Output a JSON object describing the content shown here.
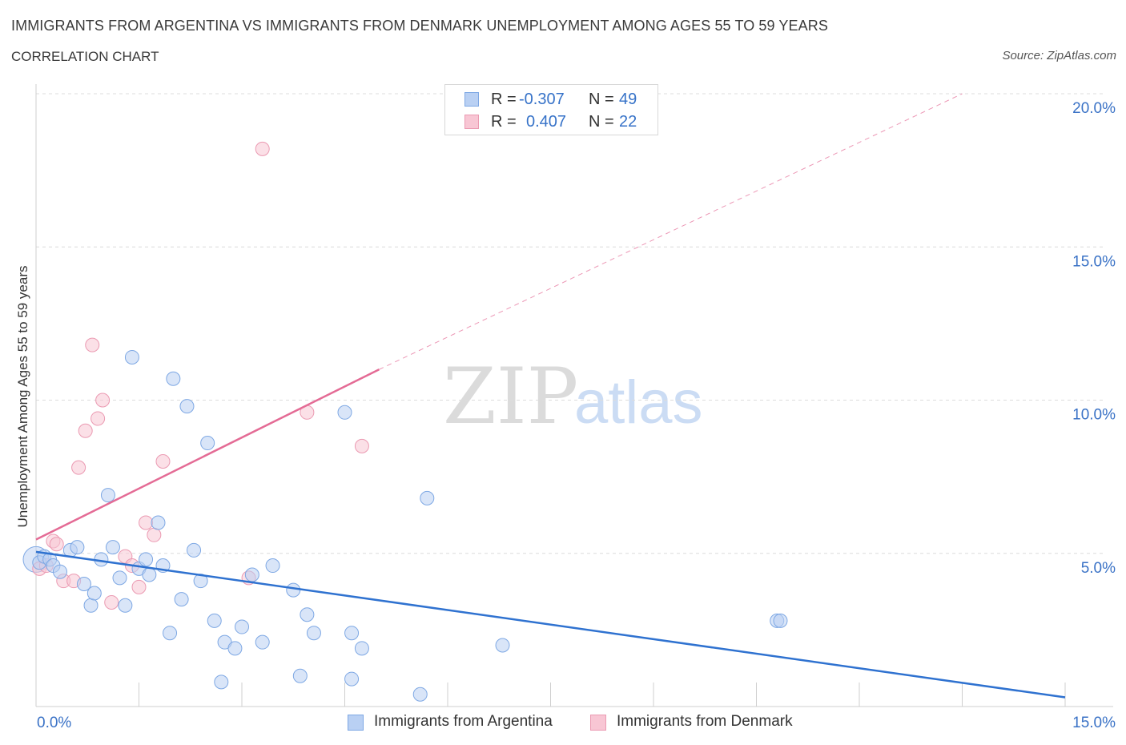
{
  "title": "IMMIGRANTS FROM ARGENTINA VS IMMIGRANTS FROM DENMARK UNEMPLOYMENT AMONG AGES 55 TO 59 YEARS",
  "subtitle": "CORRELATION CHART",
  "source": "Source: ZipAtlas.com",
  "watermark": {
    "zip": "ZIP",
    "atlas": "atlas"
  },
  "legend": {
    "rows": [
      {
        "r_label": "R =",
        "r_value": "-0.307",
        "n_label": "N =",
        "n_value": "49"
      },
      {
        "r_label": "R =",
        "r_value": "0.407",
        "n_label": "N =",
        "n_value": "22"
      }
    ]
  },
  "bottom_legend": [
    "Immigrants from Argentina",
    "Immigrants from Denmark"
  ],
  "colors": {
    "argentina_fill": "#b9d0f3",
    "argentina_stroke": "#7ea8e4",
    "argentina_line": "#2f72d0",
    "denmark_fill": "#f8c6d4",
    "denmark_stroke": "#eb9ab2",
    "denmark_line": "#e46b95",
    "tick_label": "#3a72c6",
    "grid": "#dcdcdc"
  },
  "chart_data": {
    "type": "scatter",
    "title": "IMMIGRANTS FROM ARGENTINA VS IMMIGRANTS FROM DENMARK UNEMPLOYMENT AMONG AGES 55 TO 59 YEARS",
    "xlabel": "",
    "ylabel": "Unemployment Among Ages 55 to 59 years",
    "xlim": [
      0,
      15
    ],
    "ylim": [
      0,
      20
    ],
    "x_tick_labels": [
      "0.0%",
      "15.0%"
    ],
    "y_ticks": [
      5,
      10,
      15,
      20
    ],
    "y_tick_labels": [
      "5.0%",
      "10.0%",
      "15.0%",
      "20.0%"
    ],
    "grid": true,
    "legend_position": "top-center",
    "series": [
      {
        "name": "Immigrants from Argentina",
        "R": -0.307,
        "N": 49,
        "trend": {
          "x": [
            0.0,
            15.0
          ],
          "y": [
            5.05,
            0.3
          ],
          "style": "solid"
        },
        "points": [
          [
            0.05,
            4.7
          ],
          [
            0.12,
            4.9
          ],
          [
            0.2,
            4.8
          ],
          [
            0.25,
            4.6
          ],
          [
            0.35,
            4.4
          ],
          [
            0.5,
            5.1
          ],
          [
            0.6,
            5.2
          ],
          [
            0.7,
            4.0
          ],
          [
            0.8,
            3.3
          ],
          [
            0.85,
            3.7
          ],
          [
            0.95,
            4.8
          ],
          [
            1.05,
            6.9
          ],
          [
            1.12,
            5.2
          ],
          [
            1.22,
            4.2
          ],
          [
            1.3,
            3.3
          ],
          [
            1.4,
            11.4
          ],
          [
            1.5,
            4.5
          ],
          [
            1.6,
            4.8
          ],
          [
            1.65,
            4.3
          ],
          [
            1.78,
            6.0
          ],
          [
            1.85,
            4.6
          ],
          [
            1.95,
            2.4
          ],
          [
            2.0,
            10.7
          ],
          [
            2.12,
            3.5
          ],
          [
            2.2,
            9.8
          ],
          [
            2.3,
            5.1
          ],
          [
            2.4,
            4.1
          ],
          [
            2.5,
            8.6
          ],
          [
            2.6,
            2.8
          ],
          [
            2.7,
            0.8
          ],
          [
            2.75,
            2.1
          ],
          [
            2.9,
            1.9
          ],
          [
            3.0,
            2.6
          ],
          [
            3.15,
            4.3
          ],
          [
            3.3,
            2.1
          ],
          [
            3.45,
            4.6
          ],
          [
            3.75,
            3.8
          ],
          [
            3.85,
            1.0
          ],
          [
            3.95,
            3.0
          ],
          [
            4.05,
            2.4
          ],
          [
            4.5,
            9.6
          ],
          [
            4.6,
            2.4
          ],
          [
            4.6,
            0.9
          ],
          [
            4.75,
            1.9
          ],
          [
            5.6,
            0.4
          ],
          [
            5.7,
            6.8
          ],
          [
            6.8,
            2.0
          ],
          [
            10.8,
            2.8
          ],
          [
            10.85,
            2.8
          ]
        ]
      },
      {
        "name": "Immigrants from Denmark",
        "R": 0.407,
        "N": 22,
        "trend": {
          "x": [
            0.0,
            5.0
          ],
          "y": [
            5.45,
            11.0
          ],
          "style": "solid",
          "extended_to": [
            13.5,
            20.0
          ],
          "extended_style": "dashed"
        },
        "points": [
          [
            0.05,
            4.5
          ],
          [
            0.15,
            4.6
          ],
          [
            0.25,
            5.4
          ],
          [
            0.3,
            5.3
          ],
          [
            0.4,
            4.1
          ],
          [
            0.55,
            4.1
          ],
          [
            0.62,
            7.8
          ],
          [
            0.72,
            9.0
          ],
          [
            0.82,
            11.8
          ],
          [
            0.9,
            9.4
          ],
          [
            0.97,
            10.0
          ],
          [
            1.1,
            3.4
          ],
          [
            1.3,
            4.9
          ],
          [
            1.4,
            4.6
          ],
          [
            1.5,
            3.9
          ],
          [
            1.6,
            6.0
          ],
          [
            1.72,
            5.6
          ],
          [
            1.85,
            8.0
          ],
          [
            3.1,
            4.2
          ],
          [
            3.3,
            18.2
          ],
          [
            3.95,
            9.6
          ],
          [
            4.75,
            8.5
          ]
        ]
      }
    ]
  }
}
